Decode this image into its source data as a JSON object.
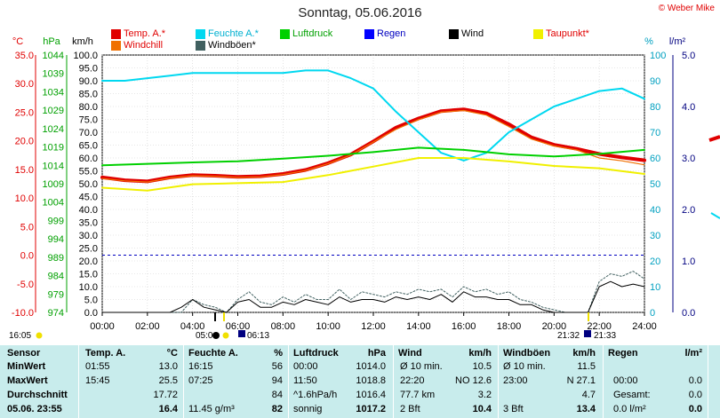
{
  "chart_data": {
    "type": "line",
    "title": "Sonntag, 05.06.2016",
    "credit": "© Weber Mike",
    "x_ticks": [
      "00:00",
      "02:00",
      "04:00",
      "06:00",
      "08:00",
      "10:00",
      "12:00",
      "14:00",
      "16:00",
      "18:00",
      "20:00",
      "22:00",
      "24:00"
    ],
    "axes": {
      "temp": {
        "label": "°C",
        "ticks": [
          "35.0",
          "30.0",
          "25.0",
          "20.0",
          "15.0",
          "10.0",
          "5.0",
          "0.0",
          "-5.0",
          "-10.0"
        ],
        "range": [
          -10,
          35
        ],
        "color": "#e00000"
      },
      "pressure": {
        "label": "hPa",
        "ticks": [
          "1044",
          "1039",
          "1034",
          "1029",
          "1024",
          "1019",
          "1014",
          "1009",
          "1004",
          "999",
          "994",
          "989",
          "984",
          "979",
          "974"
        ],
        "range": [
          974,
          1044
        ],
        "color": "#00a000"
      },
      "wind": {
        "label": "km/h",
        "ticks": [
          "100.0",
          "95.0",
          "90.0",
          "85.0",
          "80.0",
          "75.0",
          "70.0",
          "65.0",
          "60.0",
          "55.0",
          "50.0",
          "45.0",
          "40.0",
          "35.0",
          "30.0",
          "25.0",
          "20.0",
          "15.0",
          "10.0",
          "5.0",
          "0.0"
        ],
        "range": [
          0,
          100
        ],
        "color": "#000000"
      },
      "humidity": {
        "label": "%",
        "ticks": [
          "100",
          "90",
          "80",
          "70",
          "60",
          "50",
          "40",
          "30",
          "20",
          "10",
          "0"
        ],
        "range": [
          0,
          100
        ],
        "color": "#00a0c0"
      },
      "rain": {
        "label": "l/m²",
        "ticks": [
          "5.0",
          "4.0",
          "3.0",
          "2.0",
          "1.0",
          "0.0"
        ],
        "range": [
          0,
          5
        ],
        "color": "#000080"
      }
    },
    "legend": [
      {
        "label": "Temp. A.*",
        "color": "#e00000"
      },
      {
        "label": "Feuchte A.*",
        "color": "#00d8f0"
      },
      {
        "label": "Luftdruck",
        "color": "#00d000"
      },
      {
        "label": "Regen",
        "color": "#0000ff"
      },
      {
        "label": "Wind",
        "color": "#000000"
      },
      {
        "label": "Taupunkt*",
        "color": "#f0f000"
      },
      {
        "label": "Windchill",
        "color": "#f07000"
      },
      {
        "label": "Windböen*",
        "color": "#406060"
      }
    ],
    "series": [
      {
        "name": "Temp. A.*",
        "axis": "temp",
        "color": "#e00000",
        "width": 4,
        "x": [
          0,
          1,
          2,
          3,
          4,
          5,
          6,
          7,
          8,
          9,
          10,
          11,
          12,
          13,
          14,
          15,
          16,
          17,
          18,
          19,
          20,
          21,
          22,
          23,
          24
        ],
        "values": [
          13.6,
          13.1,
          12.9,
          13.6,
          14.0,
          13.9,
          13.7,
          13.8,
          14.2,
          14.9,
          16.1,
          17.6,
          19.9,
          22.3,
          23.9,
          25.2,
          25.5,
          24.8,
          22.9,
          20.6,
          19.3,
          18.6,
          17.7,
          17.1,
          16.6
        ]
      },
      {
        "name": "Windchill",
        "axis": "temp",
        "color": "#f07000",
        "width": 1.2,
        "x": [
          0,
          1,
          2,
          3,
          4,
          5,
          6,
          7,
          8,
          9,
          10,
          11,
          12,
          13,
          14,
          15,
          16,
          17,
          18,
          19,
          20,
          21,
          22,
          23,
          24
        ],
        "values": [
          13.4,
          13.0,
          12.8,
          13.5,
          13.9,
          13.8,
          13.6,
          13.7,
          14.1,
          14.8,
          16.0,
          17.5,
          19.8,
          22.0,
          23.7,
          25.0,
          25.3,
          24.5,
          22.5,
          20.3,
          19.1,
          18.4,
          17.0,
          16.5,
          15.8
        ]
      },
      {
        "name": "Feuchte A.*",
        "axis": "humidity",
        "color": "#00d8f0",
        "width": 2,
        "x": [
          0,
          1,
          2,
          3,
          4,
          5,
          6,
          7,
          8,
          9,
          10,
          11,
          12,
          13,
          14,
          15,
          16,
          17,
          18,
          19,
          20,
          21,
          22,
          23,
          24
        ],
        "values": [
          90,
          90,
          91,
          92,
          93,
          93,
          93,
          93,
          93,
          94,
          94,
          91,
          87,
          78,
          70,
          62,
          59,
          62,
          70,
          75,
          80,
          83,
          86,
          87,
          83
        ]
      },
      {
        "name": "Luftdruck",
        "axis": "pressure",
        "color": "#00d000",
        "width": 2,
        "x": [
          0,
          2,
          4,
          6,
          8,
          10,
          12,
          14,
          16,
          18,
          20,
          22,
          24
        ],
        "values": [
          1014.0,
          1014.4,
          1014.8,
          1015.1,
          1015.8,
          1016.6,
          1017.6,
          1018.8,
          1018.2,
          1017.0,
          1016.4,
          1017.1,
          1018.2
        ]
      },
      {
        "name": "Taupunkt*",
        "axis": "temp",
        "color": "#f0f000",
        "width": 2,
        "x": [
          0,
          2,
          4,
          6,
          8,
          10,
          12,
          14,
          16,
          18,
          20,
          22,
          24
        ],
        "values": [
          11.8,
          11.3,
          12.4,
          12.6,
          12.8,
          14.0,
          15.5,
          17.0,
          17.0,
          16.4,
          15.6,
          15.2,
          14.2
        ]
      },
      {
        "name": "Windböen*",
        "axis": "wind",
        "color": "#406060",
        "width": 1,
        "dashed": true,
        "x": [
          0,
          0.5,
          1,
          1.5,
          2,
          2.5,
          3,
          3.5,
          4,
          4.5,
          5,
          5.5,
          6,
          6.5,
          7,
          7.5,
          8,
          8.5,
          9,
          9.5,
          10,
          10.5,
          11,
          11.5,
          12,
          12.5,
          13,
          13.5,
          14,
          14.5,
          15,
          15.5,
          16,
          16.5,
          17,
          17.5,
          18,
          18.5,
          19,
          19.5,
          20,
          20.5,
          21,
          21.5,
          22,
          22.5,
          23,
          23.5,
          24
        ],
        "values": [
          0,
          0,
          0,
          0,
          0,
          0,
          0,
          0,
          5,
          3,
          2,
          0,
          5,
          8,
          4,
          3,
          6,
          4,
          7,
          5,
          5,
          9,
          5,
          8,
          7,
          6,
          8,
          7,
          9,
          8,
          9,
          6,
          10,
          8,
          9,
          7,
          8,
          5,
          4,
          2,
          1,
          0,
          0,
          0,
          12,
          15,
          14,
          16,
          13
        ]
      },
      {
        "name": "Wind",
        "axis": "wind",
        "color": "#000000",
        "width": 1,
        "x": [
          0,
          0.5,
          1,
          1.5,
          2,
          2.5,
          3,
          3.5,
          4,
          4.5,
          5,
          5.5,
          6,
          6.5,
          7,
          7.5,
          8,
          8.5,
          9,
          9.5,
          10,
          10.5,
          11,
          11.5,
          12,
          12.5,
          13,
          13.5,
          14,
          14.5,
          15,
          15.5,
          16,
          16.5,
          17,
          17.5,
          18,
          18.5,
          19,
          19.5,
          20,
          20.5,
          21,
          21.5,
          22,
          22.5,
          23,
          23.5,
          24
        ],
        "values": [
          0,
          0,
          0,
          0,
          0,
          0,
          0,
          2,
          5,
          2,
          1,
          0,
          4,
          5,
          2,
          2,
          4,
          3,
          5,
          4,
          3,
          6,
          4,
          5,
          5,
          4,
          6,
          5,
          6,
          5,
          7,
          4,
          8,
          6,
          6,
          5,
          5,
          3,
          3,
          1,
          0,
          0,
          0,
          0,
          10,
          12,
          10,
          11,
          10
        ]
      }
    ],
    "reference_line": {
      "axis": "temp",
      "value": 0,
      "color": "#0000c0",
      "dashed": true
    },
    "sun_markers": {
      "left_time": "16:05",
      "sunrise": "05:09",
      "sunset": "21:32",
      "moonrise": "06:13",
      "moonset": "21:33",
      "sunrise_prefix": "05:0"
    }
  },
  "stats": {
    "headers": {
      "sensor": "Sensor",
      "temp": {
        "title": "Temp. A.",
        "unit": "°C"
      },
      "hum": {
        "title": "Feuchte A.",
        "unit": "%"
      },
      "pres": {
        "title": "Luftdruck",
        "unit": "hPa"
      },
      "wind": {
        "title": "Wind",
        "unit": "km/h"
      },
      "gust": {
        "title": "Windböen",
        "unit": "km/h"
      },
      "rain": {
        "title": "Regen",
        "unit": "l/m²"
      }
    },
    "rows": [
      {
        "label": "MinWert",
        "temp_t": "01:55",
        "temp_v": "13.0",
        "hum_t": "16:15",
        "hum_v": "56",
        "pres_t": "00:00",
        "pres_v": "1014.0",
        "wind_t": "Ø 10 min.",
        "wind_v": "10.5",
        "gust_t": "Ø 10 min.",
        "gust_v": "11.5",
        "rain_t": "",
        "rain_v": ""
      },
      {
        "label": "MaxWert",
        "temp_t": "15:45",
        "temp_v": "25.5",
        "hum_t": "07:25",
        "hum_v": "94",
        "pres_t": "11:50",
        "pres_v": "1018.8",
        "wind_t": "22:20",
        "wind_m": "NO 12.6",
        "wind_v": "",
        "gust_t": "23:00",
        "gust_m": "N 27.1",
        "gust_v": "",
        "rain_t": "00:00",
        "rain_v": "0.0"
      },
      {
        "label": "Durchschnitt",
        "temp_t": "",
        "temp_v": "17.72",
        "hum_t": "",
        "hum_v": "84",
        "pres_t": "^1.6hPa/h",
        "pres_v": "1016.4",
        "wind_t": "77.7 km",
        "wind_v": "3.2",
        "gust_t": "",
        "gust_v": "4.7",
        "rain_t": "Gesamt:",
        "rain_v": "0.0"
      },
      {
        "label": "05.06. 23:55",
        "temp_t": "",
        "temp_v": "16.4",
        "hum_t": "11.45 g/m³",
        "hum_v": "82",
        "pres_t": "sonnig",
        "pres_v": "1017.2",
        "wind_t": "2 Bft",
        "wind_v": "10.4",
        "gust_t": "3 Bft",
        "gust_v": "13.4",
        "rain_t": "0.0 l/m²",
        "rain_v": "0.0"
      }
    ]
  }
}
